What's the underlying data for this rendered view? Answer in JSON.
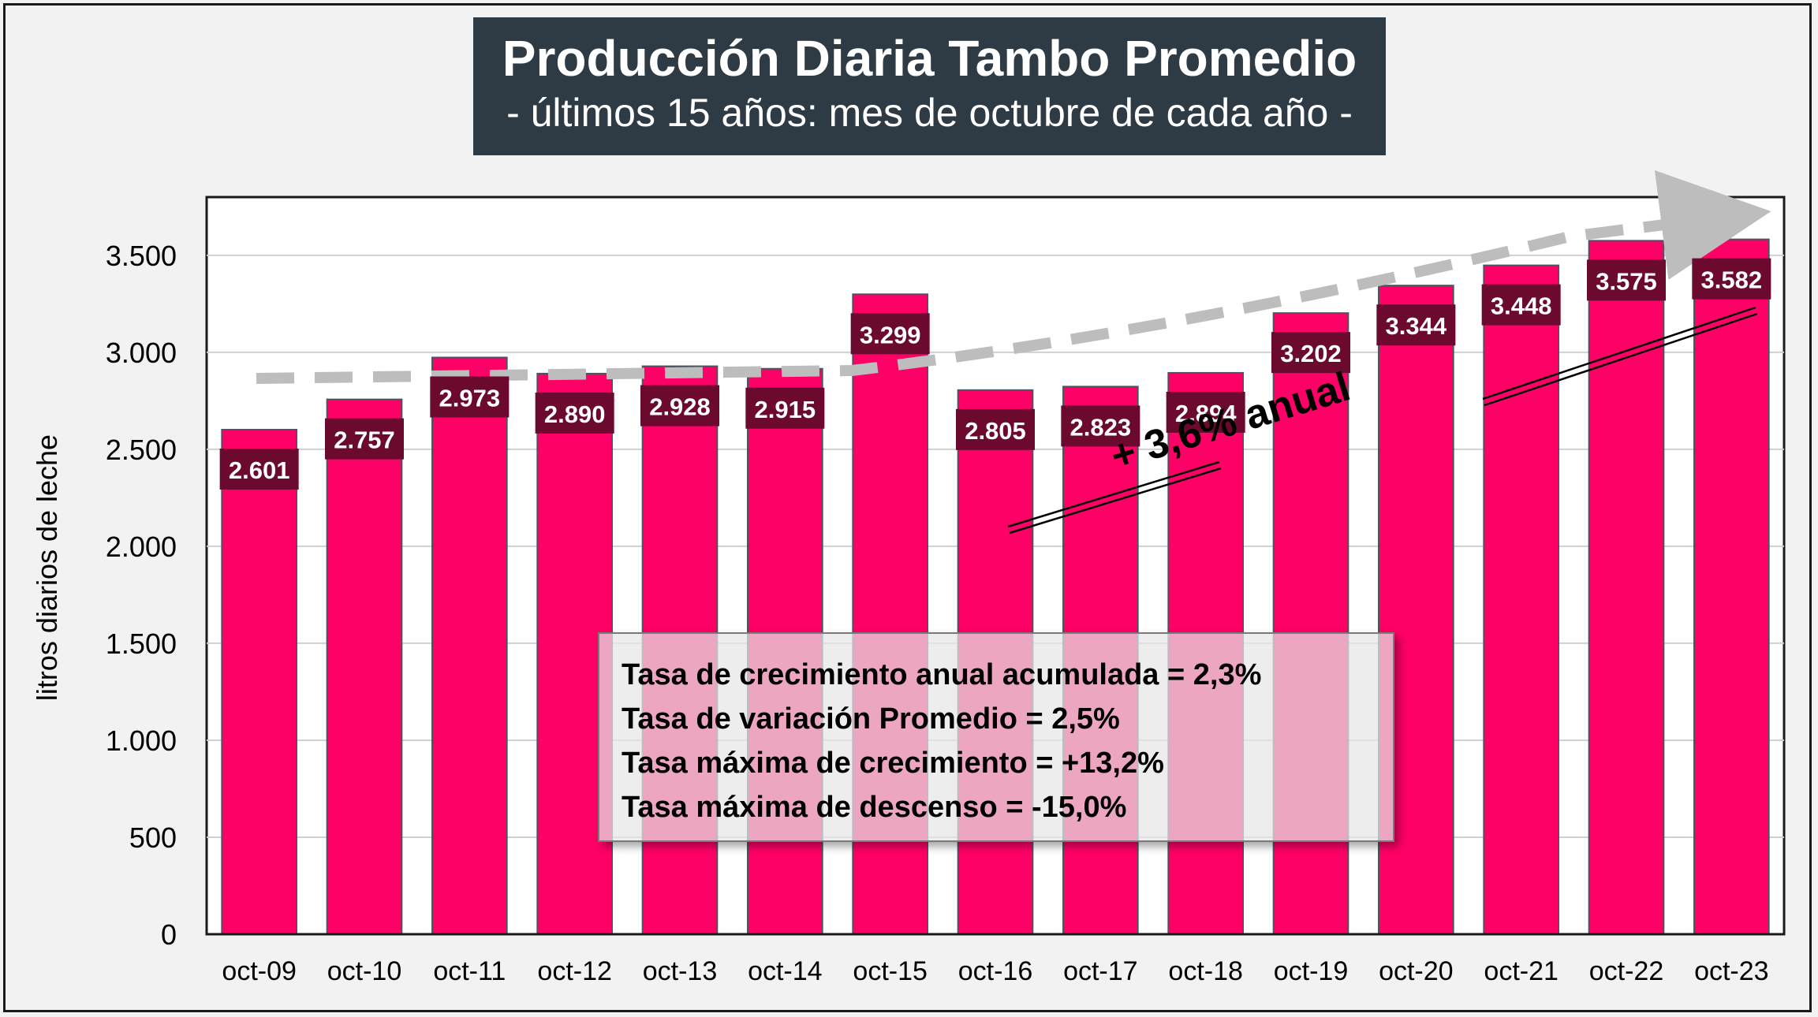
{
  "title": "Producción Diaria Tambo Promedio",
  "subtitle": "- últimos 15 años: mes de octubre de cada año -",
  "annotation": "+ 3,6% anual",
  "stats": [
    "Tasa de crecimiento anual acumulada = 2,3%",
    "Tasa de variación Promedio = 2,5%",
    "Tasa máxima de crecimiento = +13,2%",
    "Tasa máxima de descenso = -15,0%"
  ],
  "colors": {
    "bar": "#ff0066",
    "label_bg": "#6b0a2e",
    "title_bg": "#2f3b44",
    "trend_arrow": "#bdbdbd"
  },
  "chart_data": {
    "type": "bar",
    "ylabel": "litros diarios de leche",
    "xlabel": "",
    "categories": [
      "oct-09",
      "oct-10",
      "oct-11",
      "oct-12",
      "oct-13",
      "oct-14",
      "oct-15",
      "oct-16",
      "oct-17",
      "oct-18",
      "oct-19",
      "oct-20",
      "oct-21",
      "oct-22",
      "oct-23"
    ],
    "values": [
      2601,
      2757,
      2973,
      2890,
      2928,
      2915,
      3299,
      2805,
      2823,
      2894,
      3202,
      3344,
      3448,
      3575,
      3582
    ],
    "value_labels": [
      "2.601",
      "2.757",
      "2.973",
      "2.890",
      "2.928",
      "2.915",
      "3.299",
      "2.805",
      "2.823",
      "2.894",
      "3.202",
      "3.344",
      "3.448",
      "3.575",
      "3.582"
    ],
    "ylim": [
      0,
      3800
    ],
    "yticks": [
      0,
      500,
      1000,
      1500,
      2000,
      2500,
      3000,
      3500
    ],
    "ytick_labels": [
      "0",
      "500",
      "1.000",
      "1.500",
      "2.000",
      "2.500",
      "3.000",
      "3.500"
    ],
    "grid": true,
    "legend": "none"
  }
}
